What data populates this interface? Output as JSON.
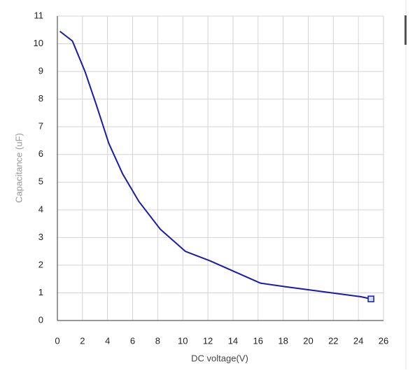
{
  "chart_data": {
    "type": "line",
    "x_label": "DC voltage(V)",
    "y_label": "Capacitance (uF)",
    "x": [
      0.2,
      1.2,
      2.2,
      3.1,
      4.1,
      5.2,
      6.5,
      8.2,
      10.2,
      12.2,
      14.2,
      16.2,
      18.2,
      20.2,
      22.2,
      24.2,
      25
    ],
    "series": [
      {
        "color": "#1a1aaa",
        "values": [
          10.45,
          10.1,
          9.0,
          7.8,
          6.4,
          5.3,
          4.3,
          3.3,
          2.5,
          2.15,
          1.75,
          1.35,
          1.22,
          1.1,
          0.98,
          0.86,
          0.78
        ]
      }
    ],
    "xlim": [
      0,
      26
    ],
    "xticks": [
      0,
      2,
      4,
      6,
      8,
      10,
      12,
      14,
      16,
      18,
      20,
      22,
      24,
      26
    ],
    "ylim": [
      0,
      11
    ],
    "yticks": [
      0,
      1,
      2,
      3,
      4,
      5,
      6,
      7,
      8,
      9,
      10,
      11
    ],
    "grid": true
  }
}
